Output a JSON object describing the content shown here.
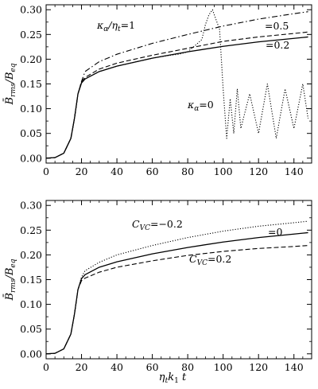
{
  "chart_data": [
    {
      "type": "line",
      "xlabel": "",
      "ylabel": "B̄rms/Beq",
      "xlim": [
        0,
        150
      ],
      "ylim": [
        -0.01,
        0.31
      ],
      "xticks": [
        "0",
        "20",
        "40",
        "60",
        "80",
        "100",
        "120",
        "140"
      ],
      "yticks": [
        "0.00",
        "0.05",
        "0.10",
        "0.15",
        "0.20",
        "0.25",
        "0.30"
      ],
      "grid": false,
      "annotations": [
        "κα/ηt=1",
        "=0.5",
        "=0.2",
        "κα=0"
      ],
      "series": [
        {
          "style": "dash-dot",
          "x": [
            0,
            5,
            10,
            14,
            16,
            18,
            20,
            22,
            30,
            40,
            60,
            80,
            100,
            120,
            140,
            148
          ],
          "y": [
            0,
            0.001,
            0.01,
            0.04,
            0.08,
            0.13,
            0.155,
            0.175,
            0.195,
            0.21,
            0.232,
            0.25,
            0.267,
            0.281,
            0.292,
            0.296
          ]
        },
        {
          "style": "dashed",
          "x": [
            0,
            5,
            10,
            14,
            16,
            18,
            20,
            22,
            30,
            40,
            60,
            80,
            100,
            120,
            140,
            148
          ],
          "y": [
            0,
            0.001,
            0.01,
            0.04,
            0.08,
            0.13,
            0.155,
            0.163,
            0.18,
            0.192,
            0.208,
            0.222,
            0.236,
            0.245,
            0.252,
            0.255
          ]
        },
        {
          "style": "solid",
          "x": [
            0,
            5,
            10,
            14,
            16,
            18,
            20,
            22,
            30,
            40,
            60,
            80,
            100,
            120,
            140,
            148
          ],
          "y": [
            0,
            0.001,
            0.01,
            0.04,
            0.08,
            0.13,
            0.152,
            0.16,
            0.175,
            0.186,
            0.202,
            0.215,
            0.226,
            0.235,
            0.242,
            0.245
          ]
        },
        {
          "style": "dotted",
          "x": [
            0,
            5,
            10,
            14,
            16,
            18,
            20,
            22,
            30,
            40,
            60,
            70,
            75,
            80,
            85,
            88,
            90,
            92,
            94,
            96,
            98,
            100,
            102,
            104,
            106,
            108,
            110,
            115,
            120,
            125,
            130,
            135,
            140,
            145,
            148
          ],
          "y": [
            0,
            0.001,
            0.01,
            0.04,
            0.08,
            0.13,
            0.152,
            0.16,
            0.175,
            0.186,
            0.202,
            0.208,
            0.21,
            0.215,
            0.23,
            0.24,
            0.27,
            0.29,
            0.3,
            0.28,
            0.26,
            0.14,
            0.04,
            0.12,
            0.05,
            0.14,
            0.06,
            0.13,
            0.05,
            0.15,
            0.04,
            0.14,
            0.06,
            0.15,
            0.08
          ]
        }
      ]
    },
    {
      "type": "line",
      "xlabel": "ηtk1 t",
      "ylabel": "B̄rms/Beq",
      "xlim": [
        0,
        150
      ],
      "ylim": [
        -0.01,
        0.31
      ],
      "xticks": [
        "0",
        "20",
        "40",
        "60",
        "80",
        "100",
        "120",
        "140"
      ],
      "yticks": [
        "0.00",
        "0.05",
        "0.10",
        "0.15",
        "0.20",
        "0.25",
        "0.30"
      ],
      "grid": false,
      "annotations": [
        "CVC=−0.2",
        "=0",
        "CVC=0.2"
      ],
      "series": [
        {
          "style": "dotted",
          "x": [
            0,
            5,
            10,
            14,
            16,
            18,
            20,
            22,
            30,
            40,
            60,
            80,
            100,
            120,
            140,
            148
          ],
          "y": [
            0,
            0.001,
            0.01,
            0.04,
            0.08,
            0.13,
            0.155,
            0.168,
            0.185,
            0.2,
            0.219,
            0.235,
            0.248,
            0.258,
            0.265,
            0.268
          ]
        },
        {
          "style": "solid",
          "x": [
            0,
            5,
            10,
            14,
            16,
            18,
            20,
            22,
            30,
            40,
            60,
            80,
            100,
            120,
            140,
            148
          ],
          "y": [
            0,
            0.001,
            0.01,
            0.04,
            0.08,
            0.13,
            0.152,
            0.16,
            0.175,
            0.186,
            0.202,
            0.215,
            0.226,
            0.235,
            0.242,
            0.245
          ]
        },
        {
          "style": "dashed",
          "x": [
            0,
            5,
            10,
            14,
            16,
            18,
            20,
            22,
            30,
            40,
            60,
            80,
            100,
            120,
            140,
            148
          ],
          "y": [
            0,
            0.001,
            0.01,
            0.04,
            0.08,
            0.13,
            0.148,
            0.153,
            0.165,
            0.175,
            0.188,
            0.199,
            0.207,
            0.213,
            0.217,
            0.219
          ]
        }
      ]
    }
  ]
}
